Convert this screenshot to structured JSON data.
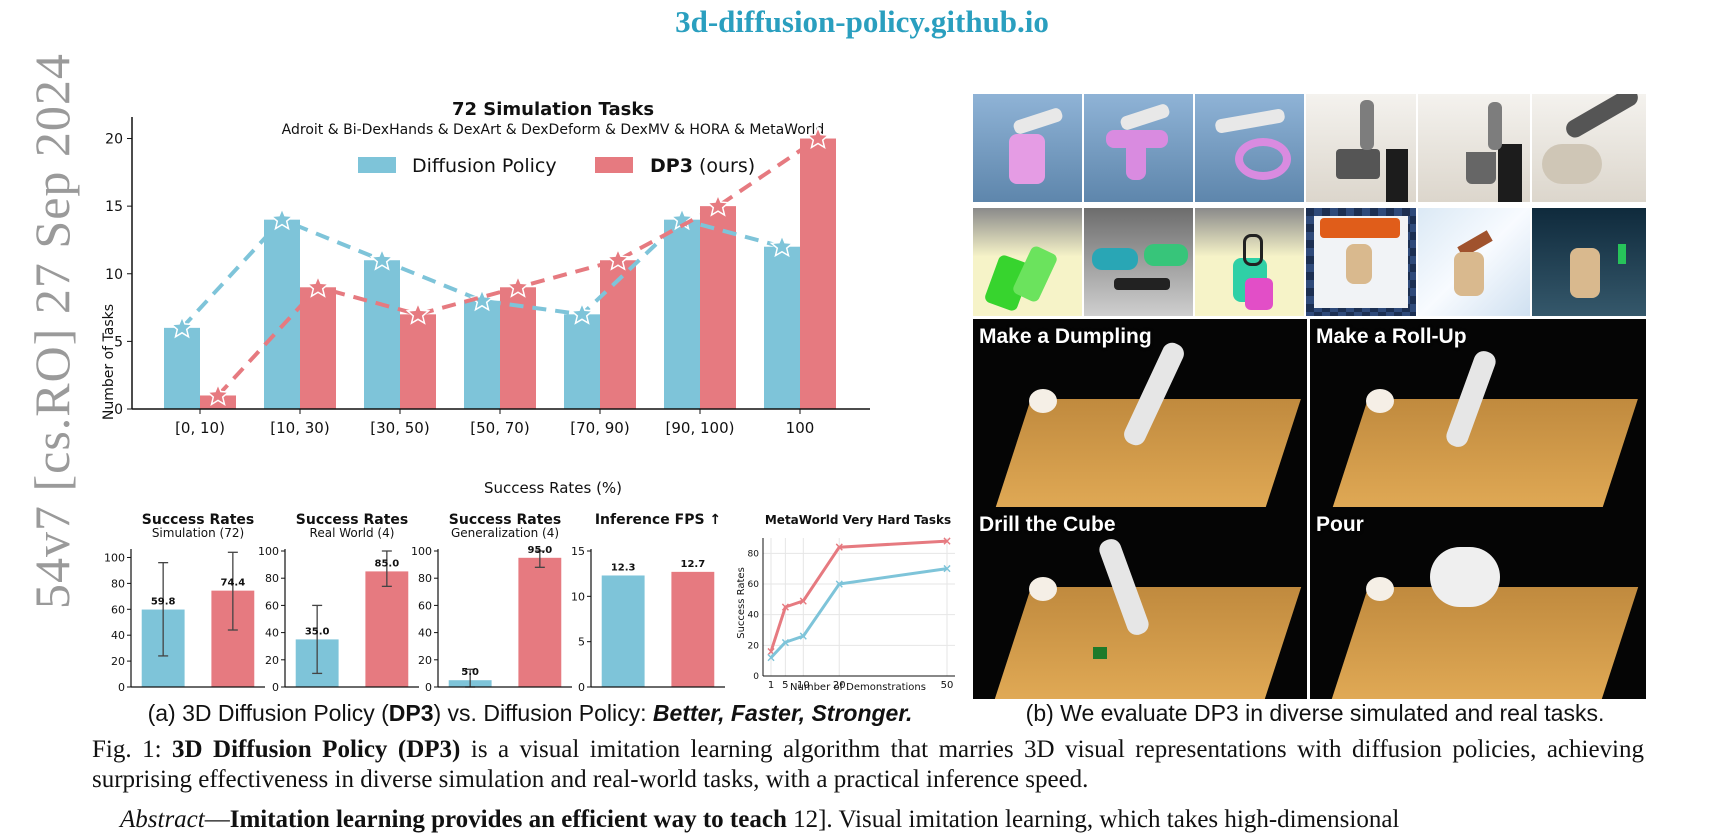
{
  "header": {
    "site_url": "3d-diffusion-policy.github.io"
  },
  "side_stamp": {
    "text": "54v7  [cs.RO]  27 Sep 2024"
  },
  "main_chart": {
    "title": "72 Simulation Tasks",
    "subtitle": "Adroit & Bi-DexHands & DexArt & DexDeform & DexMV & HORA & MetaWorld",
    "legend_a": "Diffusion Policy",
    "legend_b_bold": "DP3",
    "legend_b_rest": " (ours)",
    "xlabel": "Success Rates (%)",
    "ylabel": "Number of Tasks"
  },
  "small_charts": {
    "c1_title": "Success Rates",
    "c1_sub": "Simulation (72)",
    "c2_title": "Success Rates",
    "c2_sub": "Real World (4)",
    "c3_title": "Success Rates",
    "c3_sub": "Generalization (4)",
    "c4_title": "Inference FPS ↑",
    "c5_title": "MetaWorld Very Hard Tasks",
    "c5_xlabel": "Number of Demonstrations",
    "c5_ylabel": "Success Rates"
  },
  "colors": {
    "diffusion_policy": "#7ec4d9",
    "dp3": "#e67a80"
  },
  "chart_data": [
    {
      "type": "bar",
      "title": "72 Simulation Tasks",
      "subtitle": "Adroit & Bi-DexHands & DexArt & DexDeform & DexMV & HORA & MetaWorld",
      "categories": [
        "[0, 10)",
        "[10, 30)",
        "[30, 50)",
        "[50, 70)",
        "[70, 90)",
        "[90, 100)",
        "100"
      ],
      "series": [
        {
          "name": "Diffusion Policy",
          "values": [
            6,
            14,
            11,
            8,
            7,
            14,
            12
          ]
        },
        {
          "name": "DP3 (ours)",
          "values": [
            1,
            9,
            7,
            9,
            11,
            15,
            20
          ]
        }
      ],
      "xlabel": "Success Rates (%)",
      "ylabel": "Number of Tasks",
      "ylim": [
        0,
        21
      ],
      "yticks": [
        0,
        5,
        10,
        15,
        20
      ],
      "legend": "top-center",
      "overlay": "dashed lines with star markers connecting bar tops"
    },
    {
      "type": "bar",
      "title": "Success Rates",
      "subtitle": "Simulation (72)",
      "series": [
        {
          "name": "Diffusion Policy",
          "values": [
            59.8
          ]
        },
        {
          "name": "DP3",
          "values": [
            74.4
          ]
        }
      ],
      "error": [
        [
          24,
          96
        ],
        [
          44,
          104
        ]
      ],
      "data_labels": [
        "59.8",
        "74.4"
      ],
      "ylim": [
        0,
        105
      ],
      "yticks": [
        0,
        20,
        40,
        60,
        80,
        100
      ]
    },
    {
      "type": "bar",
      "title": "Success Rates",
      "subtitle": "Real World (4)",
      "series": [
        {
          "name": "Diffusion Policy",
          "values": [
            35.0
          ]
        },
        {
          "name": "DP3",
          "values": [
            85.0
          ]
        }
      ],
      "error": [
        [
          10,
          60
        ],
        [
          74,
          100
        ]
      ],
      "data_labels": [
        "35.0",
        "85.0"
      ],
      "ylim": [
        0,
        100
      ],
      "yticks": [
        0,
        20,
        40,
        60,
        80,
        100
      ]
    },
    {
      "type": "bar",
      "title": "Success Rates",
      "subtitle": "Generalization (4)",
      "series": [
        {
          "name": "Diffusion Policy",
          "values": [
            5.0
          ]
        },
        {
          "name": "DP3",
          "values": [
            95.0
          ]
        }
      ],
      "error": [
        [
          0,
          13
        ],
        [
          88,
          100
        ]
      ],
      "data_labels": [
        "5.0",
        "95.0"
      ],
      "ylim": [
        0,
        100
      ],
      "yticks": [
        0,
        20,
        40,
        60,
        80,
        100
      ]
    },
    {
      "type": "bar",
      "title": "Inference FPS ↑",
      "series": [
        {
          "name": "Diffusion Policy",
          "values": [
            12.3
          ]
        },
        {
          "name": "DP3",
          "values": [
            12.7
          ]
        }
      ],
      "data_labels": [
        "12.3",
        "12.7"
      ],
      "ylim": [
        0,
        15
      ],
      "yticks": [
        0,
        5,
        10,
        15
      ]
    },
    {
      "type": "line",
      "title": "MetaWorld Very Hard Tasks",
      "x": [
        1,
        5,
        10,
        20,
        50
      ],
      "series": [
        {
          "name": "DP3",
          "values": [
            16,
            45,
            49,
            84,
            88
          ]
        },
        {
          "name": "Diffusion Policy",
          "values": [
            12,
            22,
            26,
            60,
            70
          ]
        }
      ],
      "xlabel": "Number of Demonstrations",
      "ylabel": "Success Rates",
      "ylim": [
        0,
        90
      ],
      "yticks": [
        0,
        20,
        40,
        60,
        80
      ],
      "xticks": [
        "1",
        "5",
        "10",
        "20",
        "50"
      ],
      "grid": true
    }
  ],
  "gallery": {
    "panel_labels": [
      "Make a Dumpling",
      "Make a Roll-Up",
      "Drill the Cube",
      "Pour"
    ]
  },
  "captions": {
    "a_prefix": "(a) 3D Diffusion Policy (",
    "a_bold": "DP3",
    "a_middle": ") vs. Diffusion Policy: ",
    "a_italic": "Better, Faster, Stronger.",
    "b": "(b) We evaluate DP3 in diverse simulated and real tasks.",
    "fig_label": "Fig. 1: ",
    "fig_bold": "3D Diffusion Policy (DP3)",
    "fig_rest": " is a visual imitation learning algorithm that marries 3D visual representations with diffusion policies, achieving surprising effectiveness in diverse simulation and real-world tasks, with a practical inference speed."
  },
  "abstract": {
    "label": "Abstract",
    "bold": "Imitation learning provides an efficient way to teach",
    "rest": "12]. Visual imitation learning, which takes high-dimensional"
  }
}
